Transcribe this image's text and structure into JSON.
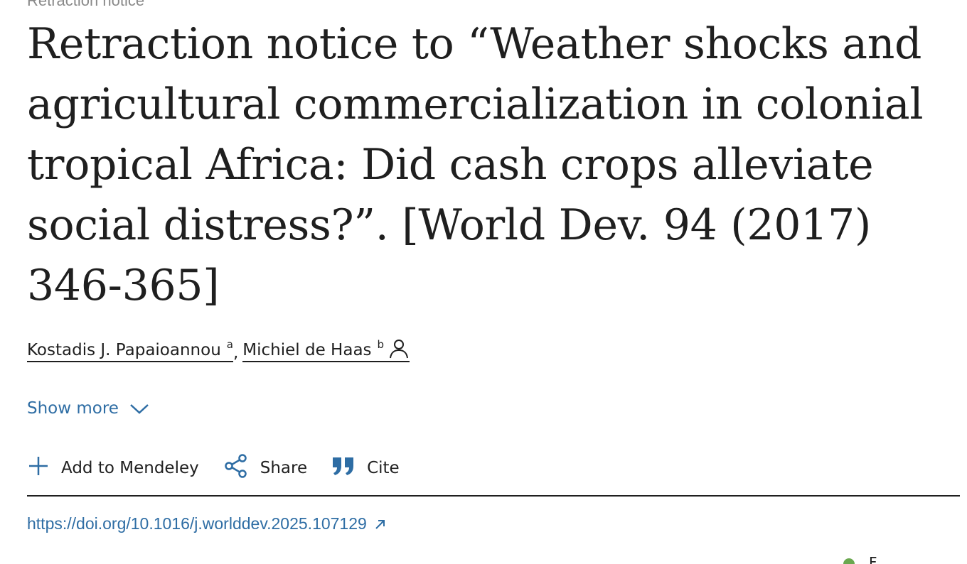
{
  "article": {
    "type_label": "Retraction notice",
    "title": "Retraction notice to “Weather shocks and agricultural commercialization in colonial tropical Africa: Did cash crops alleviate social distress?”. [World Dev. 94 (2017) 346-365]"
  },
  "authors": [
    {
      "name": "Kostadis J. Papaioannou",
      "affiliation": "a",
      "separator": ","
    },
    {
      "name": "Michiel de Haas",
      "affiliation": "b",
      "icon": "person-icon"
    }
  ],
  "show_more": {
    "label": "Show more",
    "icon": "chevron-down-icon"
  },
  "actions": [
    {
      "label": "Add to Mendeley",
      "icon": "plus-icon"
    },
    {
      "label": "Share",
      "icon": "share-icon"
    },
    {
      "label": "Cite",
      "icon": "quote-icon"
    }
  ],
  "doi": {
    "url": "https://doi.org/10.1016/j.worlddev.2025.107129",
    "icon": "external-link-icon"
  },
  "corner_text": "F",
  "colors": {
    "link_blue": "#2e6da4",
    "text_dark": "#1f1f1f",
    "muted_gray": "#8a8a8a",
    "status_green": "#6aa84f"
  }
}
